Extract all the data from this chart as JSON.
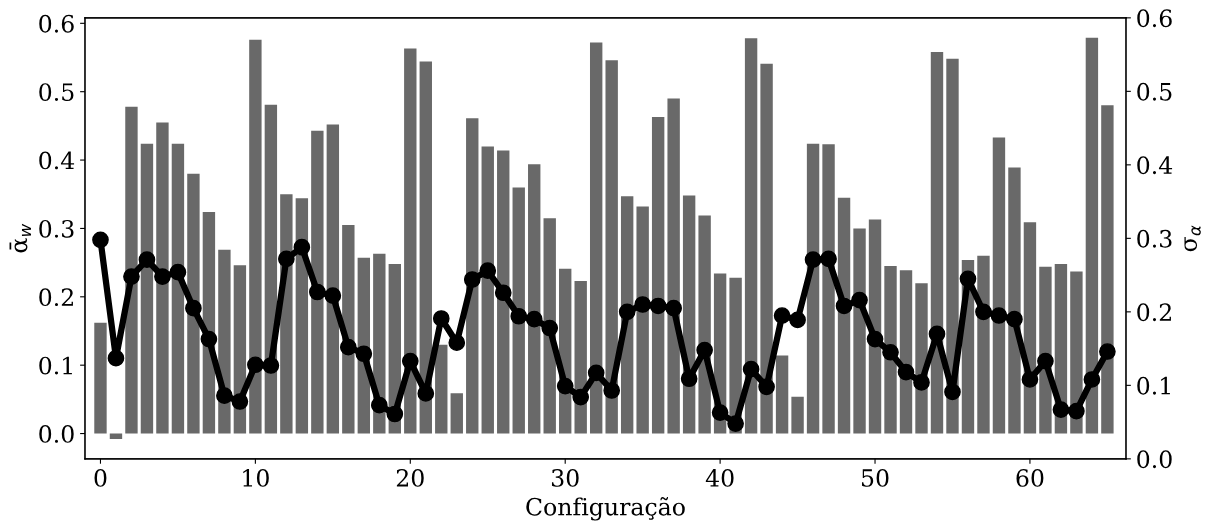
{
  "chart_data": {
    "type": "bar",
    "xlabel": "Configuração",
    "ylabel": "ᾱ$_{w}$",
    "y2label": "σ$_{α}$",
    "x": [
      0,
      1,
      2,
      3,
      4,
      5,
      6,
      7,
      8,
      9,
      10,
      11,
      12,
      13,
      14,
      15,
      16,
      17,
      18,
      19,
      20,
      21,
      22,
      23,
      24,
      25,
      26,
      27,
      28,
      29,
      30,
      31,
      32,
      33,
      34,
      35,
      36,
      37,
      38,
      39,
      40,
      41,
      42,
      43,
      44,
      45,
      46,
      47,
      48,
      49,
      50,
      51,
      52,
      53,
      54,
      55,
      56,
      57,
      58,
      59,
      60,
      61,
      62,
      63,
      64,
      65
    ],
    "xlim": [
      -1,
      66.2
    ],
    "xticks": [
      0,
      10,
      20,
      30,
      40,
      50,
      60
    ],
    "ylim": [
      -0.037,
      0.608
    ],
    "yticks": [
      {
        "value": 0,
        "label": "0.0"
      },
      0.1,
      0.2,
      0.3,
      0.4,
      0.5,
      0.6
    ],
    "y2lim": [
      0,
      0.6
    ],
    "y2ticks": [
      {
        "value": 0,
        "label": "0.0"
      },
      0.1,
      0.2,
      0.3,
      0.4,
      0.5,
      0.6
    ],
    "grid": false,
    "legend": false,
    "series": [
      {
        "color": "#696969",
        "values": [
          0.162,
          -0.008,
          0.478,
          0.424,
          0.455,
          0.424,
          0.38,
          0.324,
          0.269,
          0.246,
          0.576,
          0.481,
          0.35,
          0.344,
          0.443,
          0.452,
          0.305,
          0.257,
          0.263,
          0.248,
          0.563,
          0.544,
          0.13,
          0.059,
          0.461,
          0.42,
          0.414,
          0.36,
          0.394,
          0.315,
          0.241,
          0.223,
          0.572,
          0.546,
          0.347,
          0.332,
          0.463,
          0.49,
          0.348,
          0.319,
          0.234,
          0.228,
          0.578,
          0.541,
          0.114,
          0.054,
          0.424,
          0.423,
          0.345,
          0.3,
          0.313,
          0.245,
          0.239,
          0.22,
          0.558,
          0.548,
          0.254,
          0.26,
          0.433,
          0.389,
          0.309,
          0.244,
          0.248,
          0.237,
          0.579,
          0.48
        ]
      },
      {
        "type": "line",
        "axis": "y2",
        "color": "#000000",
        "marker": "circle",
        "line_style": "solid",
        "values": [
          0.298,
          0.137,
          0.248,
          0.271,
          0.248,
          0.254,
          0.205,
          0.163,
          0.086,
          0.078,
          0.128,
          0.127,
          0.272,
          0.288,
          0.227,
          0.222,
          0.152,
          0.143,
          0.073,
          0.061,
          0.133,
          0.089,
          0.191,
          0.158,
          0.244,
          0.256,
          0.226,
          0.194,
          0.19,
          0.178,
          0.099,
          0.084,
          0.117,
          0.093,
          0.2,
          0.21,
          0.208,
          0.205,
          0.109,
          0.148,
          0.063,
          0.048,
          0.122,
          0.098,
          0.195,
          0.189,
          0.271,
          0.272,
          0.208,
          0.216,
          0.163,
          0.145,
          0.118,
          0.104,
          0.17,
          0.091,
          0.245,
          0.2,
          0.195,
          0.19,
          0.108,
          0.133,
          0.067,
          0.065,
          0.108,
          0.146
        ]
      }
    ]
  }
}
